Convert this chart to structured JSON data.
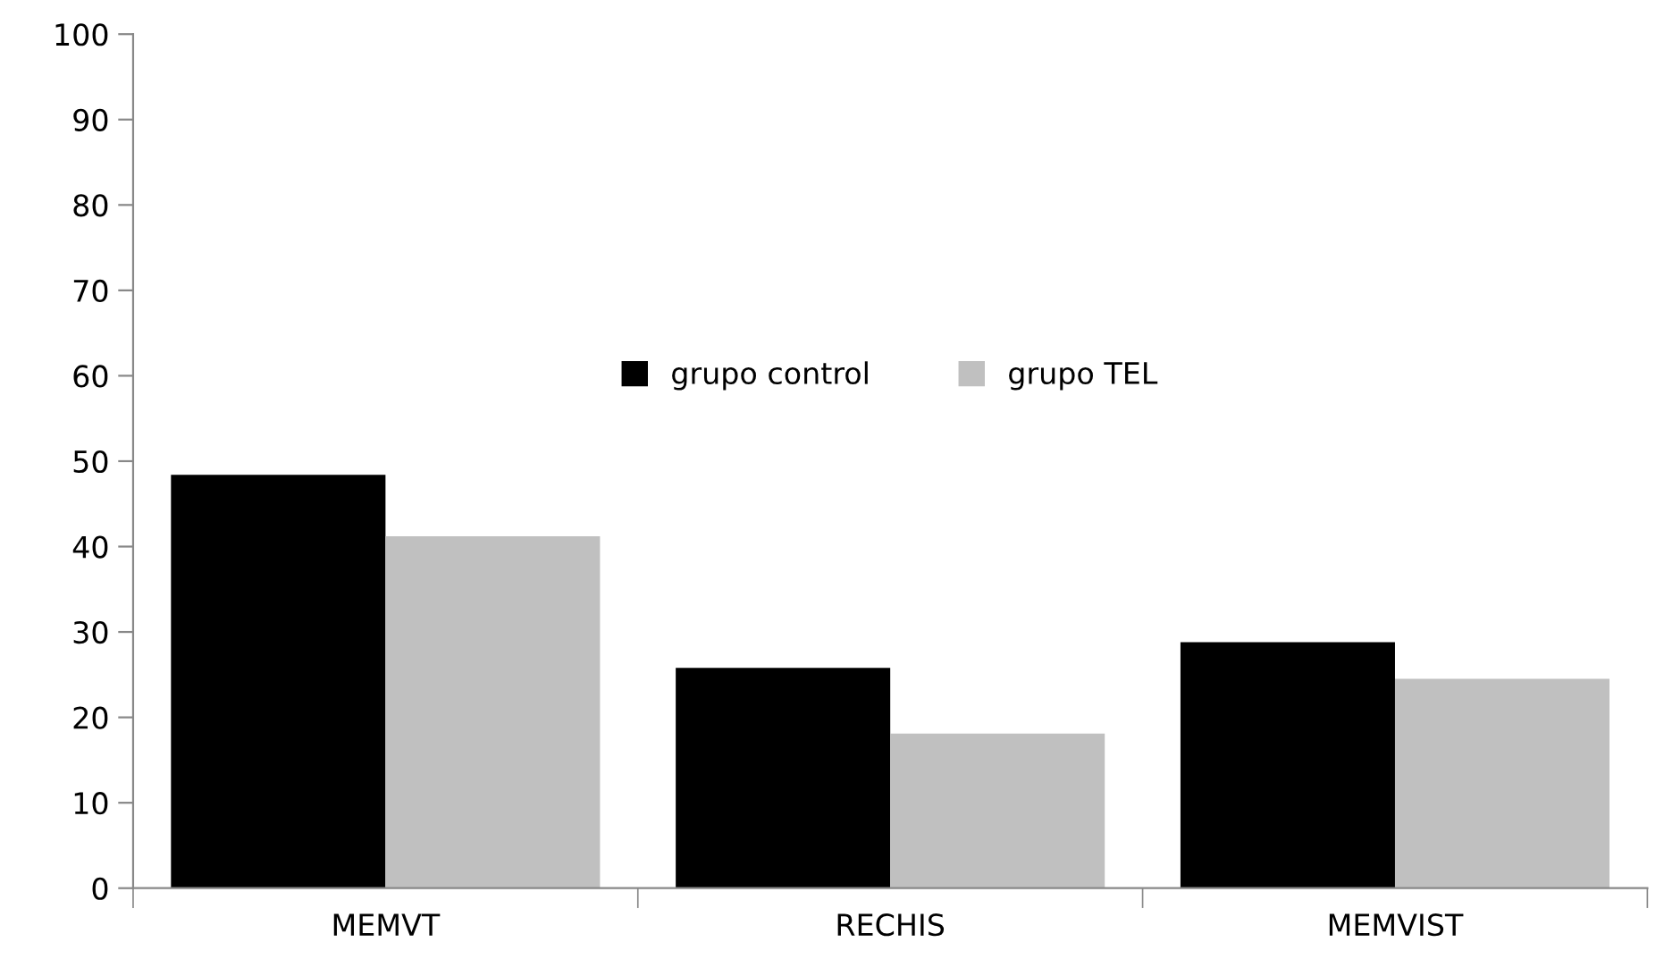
{
  "chart_data": {
    "type": "bar",
    "categories": [
      "MEMVT",
      "RECHIS",
      "MEMVIST"
    ],
    "series": [
      {
        "name": "grupo control",
        "color": "#000000",
        "values": [
          48.4,
          25.8,
          28.8
        ]
      },
      {
        "name": "grupo TEL",
        "color": "#c0c0c0",
        "values": [
          41.2,
          18.1,
          24.5
        ]
      }
    ],
    "ylim": [
      0,
      100
    ],
    "yticks": [
      0,
      10,
      20,
      30,
      40,
      50,
      60,
      70,
      80,
      90,
      100
    ],
    "grid": false,
    "legend": "center"
  }
}
